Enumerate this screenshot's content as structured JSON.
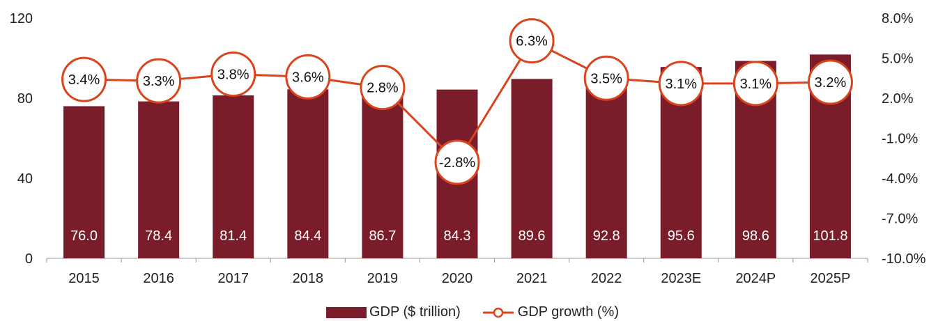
{
  "colors": {
    "bar": "#7b1c2a",
    "line": "#d9441d",
    "marker_fill": "#ffffff"
  },
  "chart_data": {
    "type": "bar",
    "categories": [
      "2015",
      "2016",
      "2017",
      "2018",
      "2019",
      "2020",
      "2021",
      "2022",
      "2023E",
      "2024P",
      "2025P"
    ],
    "series": [
      {
        "name": "GDP ($ trillion)",
        "type": "bar",
        "axis": "left",
        "values": [
          76.0,
          78.4,
          81.4,
          84.4,
          86.7,
          84.3,
          89.6,
          92.8,
          95.6,
          98.6,
          101.8
        ],
        "labels": [
          "76.0",
          "78.4",
          "81.4",
          "84.4",
          "86.7",
          "84.3",
          "89.6",
          "92.8",
          "95.6",
          "98.6",
          "101.8"
        ]
      },
      {
        "name": "GDP growth (%)",
        "type": "line",
        "axis": "right",
        "values": [
          3.4,
          3.3,
          3.8,
          3.6,
          2.8,
          -2.8,
          6.3,
          3.5,
          3.1,
          3.1,
          3.2
        ],
        "labels": [
          "3.4%",
          "3.3%",
          "3.8%",
          "3.6%",
          "2.8%",
          "-2.8%",
          "6.3%",
          "3.5%",
          "3.1%",
          "3.1%",
          "3.2%"
        ]
      }
    ],
    "y_left": {
      "ylim": [
        0,
        120
      ],
      "ticks": [
        "0",
        "40",
        "80",
        "120"
      ]
    },
    "y_right": {
      "ylim": [
        -10,
        8
      ],
      "ticks": [
        "-10.0%",
        "-7.0%",
        "-4.0%",
        "-1.0%",
        "2.0%",
        "5.0%",
        "8.0%"
      ]
    },
    "grid": false,
    "legend_position": "bottom-center"
  },
  "legend": {
    "bar_label": "GDP ($ trillion)",
    "line_label": "GDP growth (%)"
  }
}
